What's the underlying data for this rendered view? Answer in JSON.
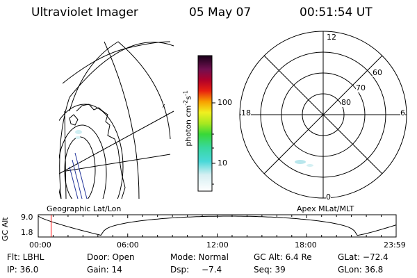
{
  "header": {
    "title": "Ultraviolet Imager",
    "date": "05 May 07",
    "time": "00:51:54 UT"
  },
  "colorbar": {
    "label": "photon cm",
    "label_sup1": "-2",
    "label_mid": "s",
    "label_sup2": "-1",
    "ticks": [
      "100",
      "10"
    ]
  },
  "polar_plot": {
    "mlt_labels": {
      "top": "12",
      "left": "18",
      "right": "6",
      "bottom": "0"
    },
    "lat_labels": [
      "60",
      "70",
      "80"
    ]
  },
  "panel_labels": {
    "left": "Geographic Lat/Lon",
    "right": "Apex MLat/MLT"
  },
  "timeline": {
    "ylabel": "GC Alt",
    "y_ticks": [
      "9.0",
      "1.8"
    ],
    "x_ticks": [
      "00:00",
      "06:00",
      "12:00",
      "18:00",
      "23:59"
    ],
    "current_time_hours": 0.865,
    "marker_color": "#ff0000"
  },
  "info": {
    "row1": {
      "flt": "Flt: LBHL",
      "door": "Door: Open",
      "mode": "Mode: Normal",
      "gcalt": "GC Alt: 6.4 Re",
      "glat": "GLat: −72.4"
    },
    "row2": {
      "ip": "IP: 36.0",
      "gain": "Gain: 14",
      "dsp": "Dsp:",
      "dsp_val": "−7.4",
      "seq": "Seq: 39",
      "glon": "GLon:  36.8"
    }
  }
}
